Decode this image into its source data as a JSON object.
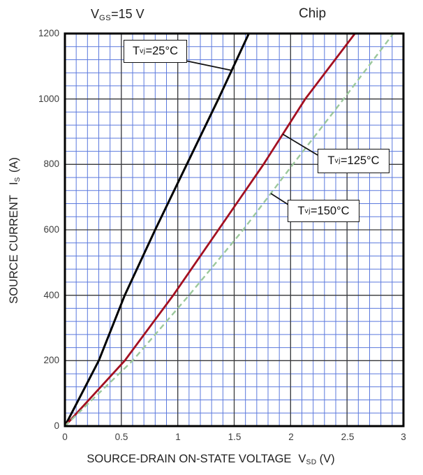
{
  "header": {
    "condition": {
      "sym": "V",
      "sym_sub": "GS",
      "rest": "=15 V"
    },
    "variant_label": "Chip"
  },
  "y_axis": {
    "title_main": "SOURCE CURRENT",
    "title_sym": "I",
    "title_sym_sub": "S",
    "title_unit": "(A)",
    "ticks": [
      "1200",
      "1000",
      "800",
      "600",
      "400",
      "200",
      "0"
    ]
  },
  "x_axis": {
    "title_main": "SOURCE-DRAIN ON-STATE VOLTAGE",
    "title_sym": "V",
    "title_sym_sub": "SD",
    "title_unit": "(V)",
    "ticks": [
      "0",
      "0.5",
      "1",
      "1.5",
      "2",
      "2.5",
      "3"
    ]
  },
  "curve_labels": [
    {
      "t": "T",
      "sub": "vj",
      "value": "=25°C"
    },
    {
      "t": "T",
      "sub": "vj",
      "value": "=125°C"
    },
    {
      "t": "T",
      "sub": "vj",
      "value": "=150°C"
    }
  ],
  "colors": {
    "curve_25c": "#000000",
    "curve_125c": "#a31021",
    "curve_150c": "#9cc89c",
    "grid_minor": "#5b79dd",
    "grid_major": "#3a3a3a",
    "border": "#000000"
  },
  "chart_data": {
    "type": "line",
    "title": "",
    "condition": "VGS=15 V",
    "variant": "Chip",
    "xlabel": "SOURCE-DRAIN ON-STATE VOLTAGE VSD (V)",
    "ylabel": "SOURCE CURRENT IS (A)",
    "xlim": [
      0,
      3
    ],
    "ylim": [
      0,
      1200
    ],
    "x_major_step": 0.5,
    "x_minor_step": 0.1,
    "y_major_step": 200,
    "y_minor_step": 40,
    "grid": "on",
    "legend_position": "labeled-boxes-with-leaders",
    "series": [
      {
        "name": "Tvj=25C",
        "style": "solid",
        "color_key": "curve_25c",
        "points": [
          [
            0,
            0
          ],
          [
            0.3,
            200
          ],
          [
            0.53,
            400
          ],
          [
            0.8,
            600
          ],
          [
            1.08,
            800
          ],
          [
            1.36,
            1000
          ],
          [
            1.63,
            1200
          ]
        ]
      },
      {
        "name": "Tvj=125C",
        "style": "solid",
        "color_key": "curve_125c",
        "points": [
          [
            0,
            0
          ],
          [
            0.53,
            200
          ],
          [
            0.96,
            400
          ],
          [
            1.36,
            600
          ],
          [
            1.76,
            800
          ],
          [
            2.13,
            1000
          ],
          [
            2.57,
            1200
          ]
        ]
      },
      {
        "name": "Tvj=150C",
        "style": "dashed",
        "color_key": "curve_150c",
        "points": [
          [
            0,
            0
          ],
          [
            0.6,
            200
          ],
          [
            1.1,
            400
          ],
          [
            1.58,
            600
          ],
          [
            2.02,
            800
          ],
          [
            2.47,
            1000
          ],
          [
            2.91,
            1200
          ]
        ]
      }
    ]
  }
}
